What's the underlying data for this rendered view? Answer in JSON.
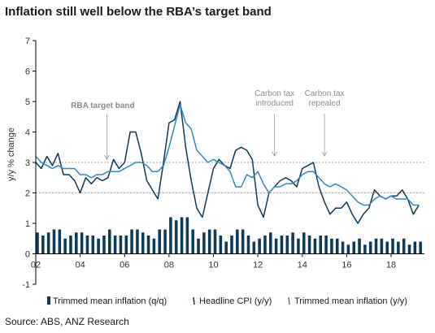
{
  "title": "Inflation still well below the RBA’s target band",
  "source": "Source: ABS, ANZ Research",
  "chart_data": {
    "type": "line",
    "ylabel": "y/y % change",
    "ylim": [
      -1,
      7
    ],
    "yticks": [
      "-1",
      "0",
      "1",
      "2",
      "3",
      "4",
      "5",
      "6",
      "7"
    ],
    "xlim": [
      2002.0,
      2019.5
    ],
    "xticks": [
      {
        "x": 2002,
        "label": "02"
      },
      {
        "x": 2004,
        "label": "04"
      },
      {
        "x": 2006,
        "label": "06"
      },
      {
        "x": 2008,
        "label": "08"
      },
      {
        "x": 2010,
        "label": "10"
      },
      {
        "x": 2012,
        "label": "12"
      },
      {
        "x": 2014,
        "label": "14"
      },
      {
        "x": 2016,
        "label": "16"
      },
      {
        "x": 2018,
        "label": "18"
      }
    ],
    "target_band": [
      2,
      3
    ],
    "annotations": [
      {
        "text": "RBA target band",
        "lines": [
          "RBA target band"
        ],
        "x": 2005.2
      },
      {
        "text": "Carbon tax introduced",
        "lines": [
          "Carbon tax",
          "introduced"
        ],
        "x": 2012.75
      },
      {
        "text": "Carbon tax repealed",
        "lines": [
          "Carbon tax",
          "repealed"
        ],
        "x": 2015.0
      }
    ],
    "x": [
      2002.0,
      2002.25,
      2002.5,
      2002.75,
      2003.0,
      2003.25,
      2003.5,
      2003.75,
      2004.0,
      2004.25,
      2004.5,
      2004.75,
      2005.0,
      2005.25,
      2005.5,
      2005.75,
      2006.0,
      2006.25,
      2006.5,
      2006.75,
      2007.0,
      2007.25,
      2007.5,
      2007.75,
      2008.0,
      2008.25,
      2008.5,
      2008.75,
      2009.0,
      2009.25,
      2009.5,
      2009.75,
      2010.0,
      2010.25,
      2010.5,
      2010.75,
      2011.0,
      2011.25,
      2011.5,
      2011.75,
      2012.0,
      2012.25,
      2012.5,
      2012.75,
      2013.0,
      2013.25,
      2013.5,
      2013.75,
      2014.0,
      2014.25,
      2014.5,
      2014.75,
      2015.0,
      2015.25,
      2015.5,
      2015.75,
      2016.0,
      2016.25,
      2016.5,
      2016.75,
      2017.0,
      2017.25,
      2017.5,
      2017.75,
      2018.0,
      2018.25,
      2018.5,
      2018.75,
      2019.0,
      2019.25
    ],
    "series": [
      {
        "name": "Trimmed mean inflation (q/q)",
        "kind": "bar",
        "color": "#0b3a5b",
        "values": [
          0.7,
          0.6,
          0.7,
          0.8,
          0.8,
          0.5,
          0.6,
          0.7,
          0.7,
          0.6,
          0.6,
          0.5,
          0.6,
          0.8,
          0.6,
          0.6,
          0.6,
          0.8,
          0.8,
          0.7,
          0.6,
          0.5,
          0.8,
          0.8,
          1.2,
          1.1,
          1.2,
          1.2,
          0.8,
          0.5,
          0.7,
          0.8,
          0.8,
          0.6,
          0.4,
          0.6,
          0.8,
          0.8,
          0.6,
          0.4,
          0.5,
          0.6,
          0.7,
          0.5,
          0.6,
          0.6,
          0.7,
          0.5,
          0.7,
          0.6,
          0.5,
          0.6,
          0.6,
          0.5,
          0.5,
          0.4,
          0.3,
          0.4,
          0.5,
          0.3,
          0.4,
          0.5,
          0.5,
          0.4,
          0.5,
          0.4,
          0.5,
          0.3,
          0.4,
          0.4
        ]
      },
      {
        "name": "Headline CPI (y/y)",
        "kind": "line",
        "color": "#0b3a5b",
        "values": [
          3.0,
          2.8,
          3.2,
          2.9,
          3.3,
          2.6,
          2.6,
          2.4,
          2.0,
          2.5,
          2.3,
          2.5,
          2.4,
          2.5,
          3.1,
          2.8,
          3.0,
          4.0,
          4.0,
          3.3,
          2.4,
          2.1,
          1.8,
          3.0,
          4.3,
          4.4,
          5.0,
          3.5,
          2.4,
          1.5,
          1.2,
          2.0,
          2.8,
          3.1,
          2.9,
          2.8,
          3.4,
          3.5,
          3.4,
          3.1,
          1.6,
          1.2,
          2.0,
          2.2,
          2.4,
          2.5,
          2.4,
          2.2,
          2.8,
          2.9,
          3.0,
          2.2,
          1.7,
          1.3,
          1.5,
          1.5,
          1.7,
          1.3,
          1.0,
          1.3,
          1.5,
          2.1,
          1.9,
          1.8,
          1.9,
          1.9,
          2.1,
          1.8,
          1.3,
          1.6
        ]
      },
      {
        "name": "Trimmed mean inflation (y/y)",
        "kind": "line",
        "color": "#2e8bc0",
        "values": [
          3.2,
          3.0,
          2.9,
          2.8,
          2.9,
          2.8,
          2.8,
          2.8,
          2.6,
          2.6,
          2.5,
          2.6,
          2.6,
          2.7,
          2.7,
          2.7,
          2.8,
          2.9,
          3.0,
          3.0,
          2.9,
          2.7,
          2.7,
          2.9,
          3.5,
          4.2,
          4.9,
          4.3,
          4.1,
          3.4,
          3.2,
          3.0,
          3.1,
          3.0,
          2.9,
          2.7,
          2.2,
          2.2,
          2.6,
          2.5,
          2.7,
          2.3,
          2.0,
          2.2,
          2.2,
          2.3,
          2.3,
          2.4,
          2.6,
          2.7,
          2.7,
          2.5,
          2.3,
          2.2,
          2.3,
          2.2,
          2.1,
          1.9,
          1.7,
          1.6,
          1.6,
          1.8,
          1.9,
          1.8,
          1.9,
          1.8,
          1.8,
          1.8,
          1.6,
          1.6
        ]
      }
    ],
    "legend_position": "bottom"
  }
}
